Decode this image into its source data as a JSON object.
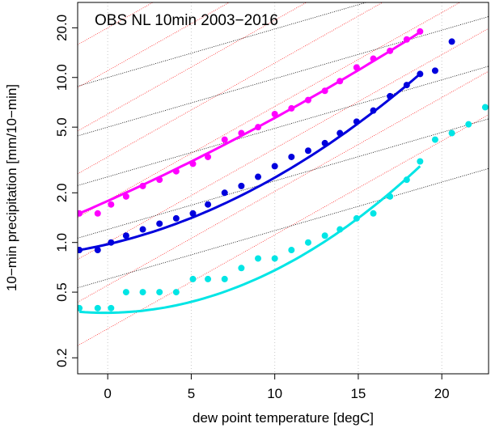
{
  "chart_data": {
    "type": "scatter",
    "title": "OBS NL 10min 2003−2016",
    "xlabel": "dew point temperature [degC]",
    "ylabel": "10−min precipitation [mm/10−min]",
    "x_scale": "linear",
    "y_scale": "log",
    "xlim": [
      -1.8,
      22.8
    ],
    "ylim": [
      0.16,
      28.5
    ],
    "x_ticks": [
      0,
      5,
      10,
      15,
      20
    ],
    "x_tick_labels": [
      "0",
      "5",
      "10",
      "15",
      "20"
    ],
    "y_ticks": [
      0.2,
      0.5,
      1.0,
      2.0,
      5.0,
      10.0,
      20.0
    ],
    "y_tick_labels": [
      "0.2",
      "0.5",
      "1.0",
      "2.0",
      "5.0",
      "10.0",
      "20.0"
    ],
    "vertical_grid": true,
    "series": [
      {
        "color": "#ff00ff",
        "x": [
          -1.7,
          -0.6,
          0.2,
          1.1,
          2.1,
          3.1,
          4.1,
          5.1,
          6.0,
          7.0,
          8.0,
          9.0,
          10.0,
          11.0,
          12.0,
          13.0,
          13.9,
          14.9,
          15.9,
          16.9,
          17.9,
          18.7
        ],
        "y": [
          1.5,
          1.5,
          1.7,
          1.9,
          2.2,
          2.4,
          2.7,
          3.0,
          3.3,
          4.2,
          4.6,
          5.0,
          6.0,
          6.5,
          7.3,
          8.3,
          9.5,
          11.5,
          13.0,
          14.5,
          17.0,
          19.0
        ],
        "fit": {
          "x0": -1.7,
          "x1": 18.7,
          "y0": 1.5,
          "y1": 18.8,
          "c": 0.0005
        }
      },
      {
        "color": "#0000dd",
        "x": [
          -1.7,
          -0.6,
          0.2,
          1.1,
          2.1,
          3.1,
          4.1,
          5.1,
          6.0,
          7.0,
          8.0,
          9.0,
          10.0,
          11.0,
          12.0,
          13.0,
          13.9,
          14.9,
          15.9,
          16.9,
          17.9,
          18.7,
          19.6,
          20.6
        ],
        "y": [
          0.9,
          0.9,
          1.0,
          1.1,
          1.2,
          1.3,
          1.4,
          1.5,
          1.7,
          2.0,
          2.2,
          2.5,
          2.9,
          3.3,
          3.6,
          4.0,
          4.6,
          5.4,
          6.3,
          7.7,
          9.0,
          10.5,
          11.0,
          16.5
        ],
        "fit": {
          "x0": -1.7,
          "x1": 18.7,
          "y0": 0.9,
          "y1": 10.5,
          "c": 0.0017
        }
      },
      {
        "color": "#00e5e5",
        "x": [
          -1.7,
          -0.6,
          0.2,
          1.1,
          2.1,
          3.1,
          4.1,
          5.1,
          6.0,
          7.0,
          8.0,
          9.0,
          10.0,
          11.0,
          12.0,
          13.0,
          13.9,
          14.9,
          15.9,
          16.9,
          17.9,
          18.7,
          19.6,
          20.6,
          21.6,
          22.6
        ],
        "y": [
          0.4,
          0.4,
          0.4,
          0.5,
          0.5,
          0.5,
          0.5,
          0.6,
          0.6,
          0.6,
          0.7,
          0.8,
          0.8,
          0.9,
          1.0,
          1.1,
          1.2,
          1.4,
          1.5,
          1.9,
          2.4,
          3.1,
          4.2,
          4.6,
          5.2,
          6.6
        ],
        "fit": {
          "x0": -1.7,
          "x1": 18.7,
          "y0": 0.38,
          "y1": 2.9,
          "c": 0.0025
        }
      }
    ],
    "reference_lines": {
      "red": {
        "color": "#ff3030",
        "style": "dotted",
        "y_at_x0": [
          0.3,
          0.55,
          1.0,
          1.8,
          3.3,
          6.0,
          11.0,
          20.0
        ],
        "x0": 0,
        "growth_per_degC": 0.14
      },
      "black": {
        "color": "#000000",
        "style": "dotted",
        "y_at_x0": [
          0.6,
          1.2,
          2.5,
          5.0,
          10.0
        ],
        "x0": 0,
        "growth_per_degC": 0.07
      }
    }
  }
}
